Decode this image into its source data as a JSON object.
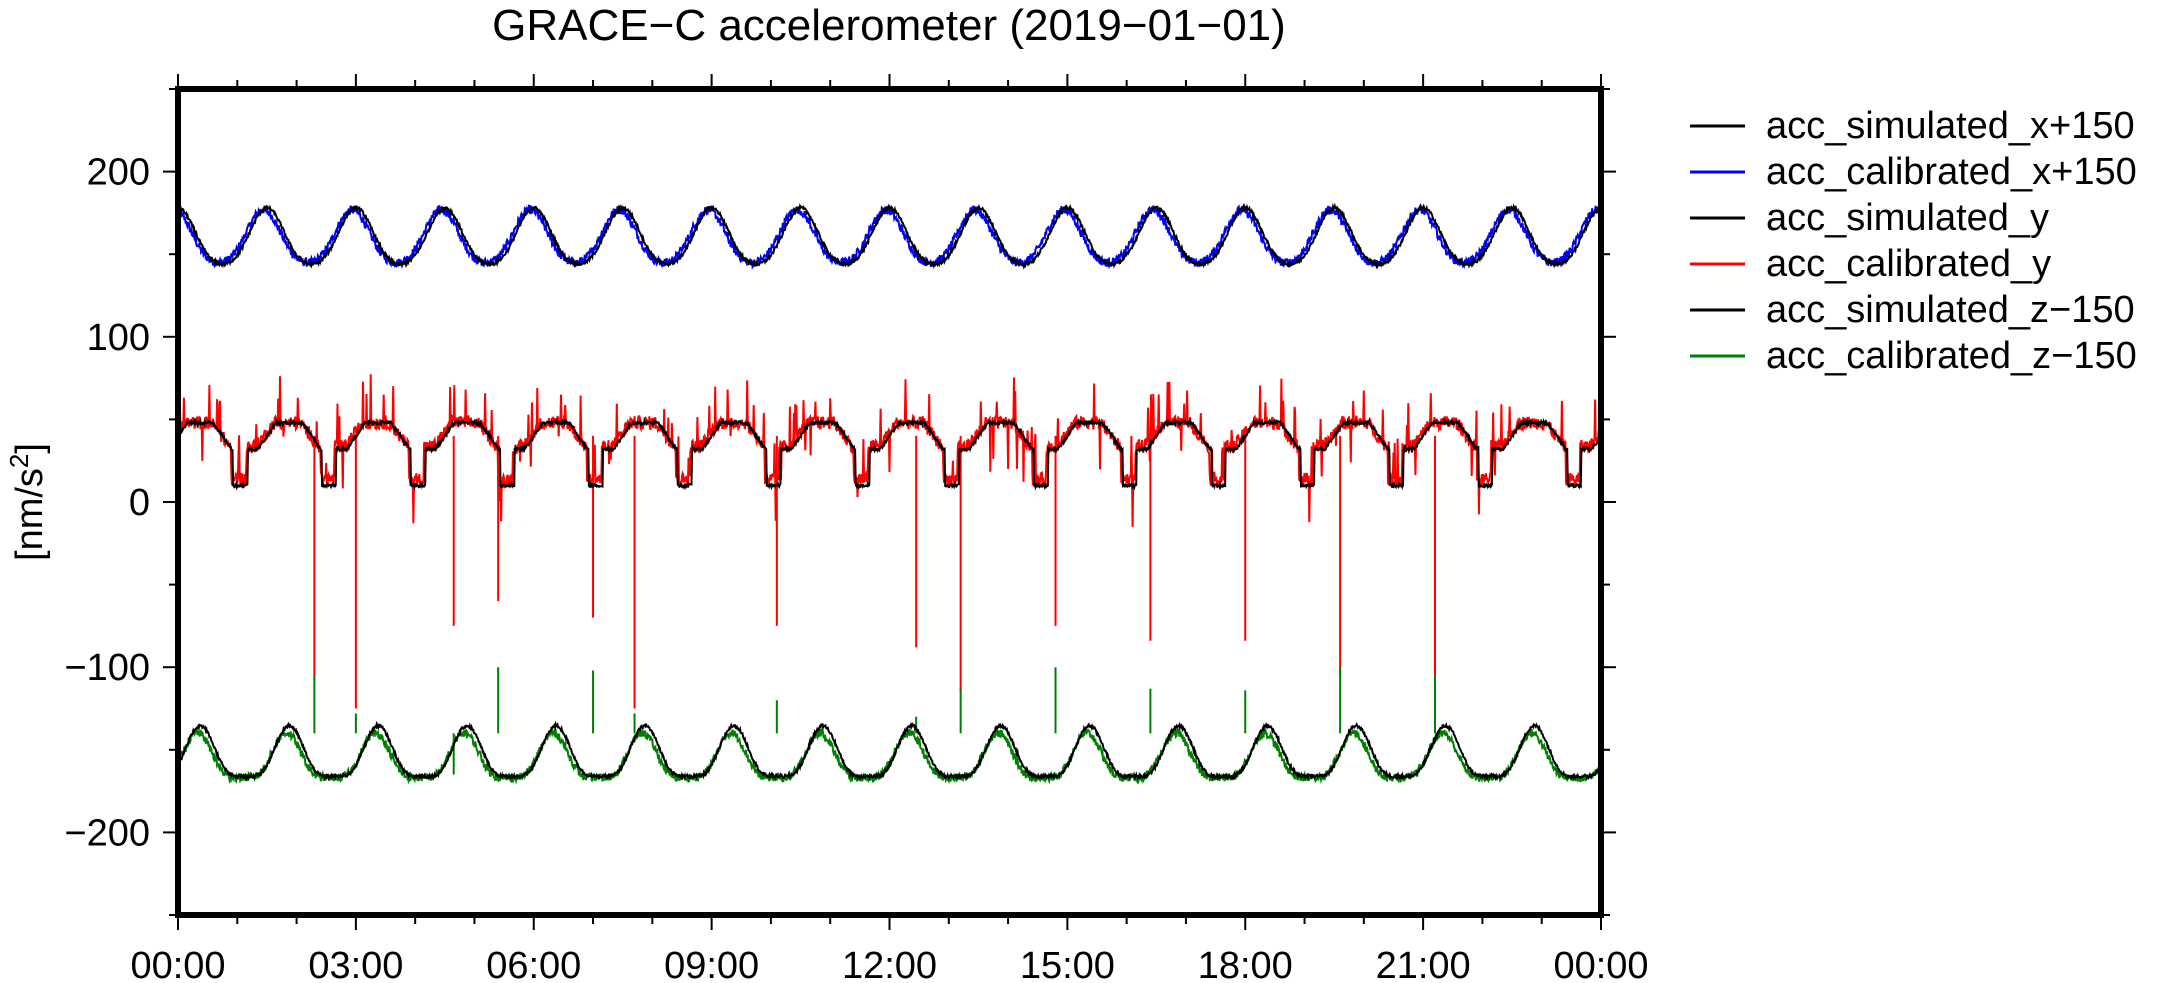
{
  "chart_data": {
    "type": "line",
    "title": "GRACE−C accelerometer (2019−01−01)",
    "xlabel": "",
    "ylabel": "[nm/s",
    "ylabel_superscript": "2",
    "ylabel_close": "]",
    "xlim_hours": [
      0,
      24
    ],
    "ylim": [
      -250,
      250
    ],
    "x_ticks": [
      "00:00",
      "03:00",
      "06:00",
      "09:00",
      "12:00",
      "15:00",
      "18:00",
      "21:00",
      "00:00"
    ],
    "x_tick_hours": [
      0,
      3,
      6,
      9,
      12,
      15,
      18,
      21,
      24
    ],
    "y_ticks": [
      200,
      100,
      0,
      -100,
      -200
    ],
    "y_tick_labels": [
      "200",
      "100",
      "0",
      "−100",
      "−200"
    ],
    "grid": false,
    "legend_position": "outside-right",
    "orbit_period_hours": 1.5,
    "spike_hours": [
      2.3,
      3.0,
      4.65,
      5.4,
      7.0,
      7.7,
      10.1,
      12.45,
      13.2,
      14.8,
      16.4,
      18.0,
      19.6,
      21.2
    ],
    "spike_min_y": [
      -108,
      -125,
      -75,
      -60,
      -70,
      -125,
      -75,
      -88,
      -115,
      -75,
      -84,
      -84,
      -105,
      -108
    ],
    "spike_min_z": [
      -105,
      -128,
      -165,
      -100,
      -102,
      -128,
      -120,
      -130,
      -113,
      -100,
      -113,
      -114,
      -100,
      -105
    ],
    "series": [
      {
        "name": "acc_simulated_x+150",
        "color": "#000000",
        "kind": "x",
        "offset": 150,
        "mean": 159,
        "amp": 17,
        "phase": 0.0,
        "noise": 1.0
      },
      {
        "name": "acc_calibrated_x+150",
        "color": "#0000ff",
        "kind": "x",
        "offset": 150,
        "mean": 159,
        "amp": 16,
        "phase": 0.04,
        "noise": 2.6
      },
      {
        "name": "acc_simulated_y",
        "color": "#000000",
        "kind": "y",
        "offset": 0,
        "mean": 28,
        "amp": 20,
        "phase": 0.0,
        "noise": 1.0
      },
      {
        "name": "acc_calibrated_y",
        "color": "#ff0000",
        "kind": "y",
        "offset": 0,
        "mean": 30,
        "amp": 18,
        "phase": 0.02,
        "noise": 4.0
      },
      {
        "name": "acc_simulated_z−150",
        "color": "#000000",
        "kind": "z",
        "offset": -150,
        "mean": -155,
        "amp": 17,
        "phase": 0.0,
        "noise": 1.0
      },
      {
        "name": "acc_calibrated_z−150",
        "color": "#008000",
        "kind": "z",
        "offset": -150,
        "mean": -157,
        "amp": 15,
        "phase": 0.03,
        "noise": 2.4
      }
    ]
  }
}
